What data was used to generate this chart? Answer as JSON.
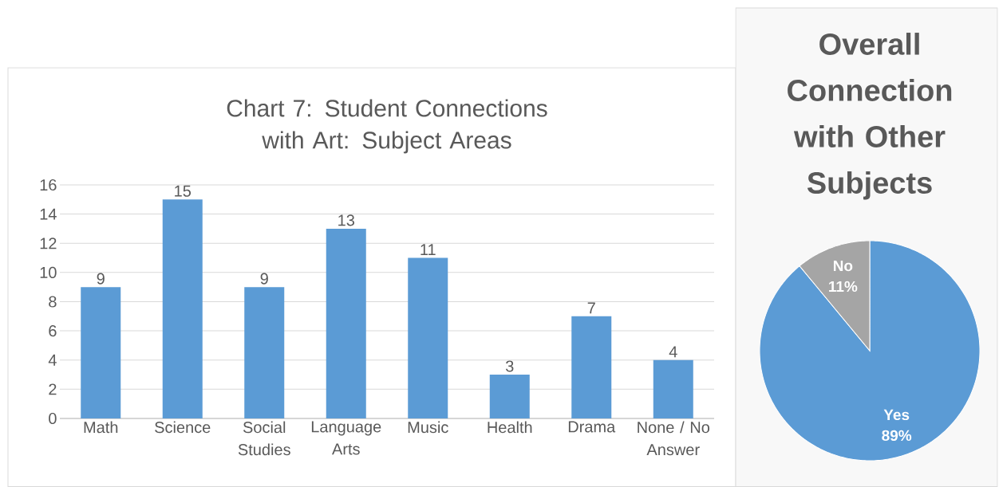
{
  "chart_data": [
    {
      "type": "bar",
      "title": "Chart 7: Student Connections with Art: Subject Areas",
      "categories": [
        "Math",
        "Science",
        "Social Studies",
        "Language Arts",
        "Music",
        "Health",
        "Drama",
        "None / No Answer"
      ],
      "values": [
        9,
        15,
        9,
        13,
        11,
        3,
        7,
        4
      ],
      "color": "#5b9bd5",
      "ylim": [
        0,
        16
      ],
      "yticks": [
        0,
        2,
        4,
        6,
        8,
        10,
        12,
        14,
        16
      ],
      "grid": "y",
      "data_labels": true
    },
    {
      "type": "pie",
      "title": "Overall Connection with Other Subjects",
      "categories": [
        "Yes",
        "No"
      ],
      "values": [
        89,
        11
      ],
      "colors": [
        "#5b9bd5",
        "#a5a5a5"
      ],
      "value_labels": [
        "89%",
        "11%"
      ]
    }
  ]
}
